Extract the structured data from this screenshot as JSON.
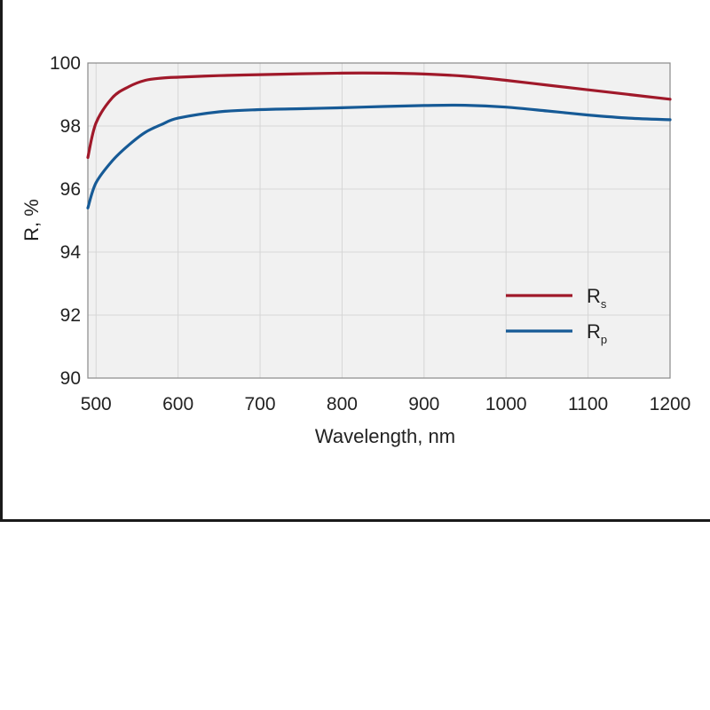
{
  "chart_data": {
    "type": "line",
    "xlabel": "Wavelength, nm",
    "ylabel": "R, %",
    "xlim": [
      490,
      1200
    ],
    "ylim": [
      90,
      100
    ],
    "xticks": [
      500,
      600,
      700,
      800,
      900,
      1000,
      1100,
      1200
    ],
    "yticks": [
      90,
      92,
      94,
      96,
      98,
      100
    ],
    "grid": true,
    "legend": "bottom-right",
    "series": [
      {
        "name": "Rs",
        "name_main": "R",
        "name_sub": "s",
        "color": "#a0192a",
        "x": [
          490,
          500,
          520,
          540,
          560,
          580,
          600,
          650,
          700,
          750,
          800,
          850,
          900,
          950,
          1000,
          1050,
          1100,
          1150,
          1200
        ],
        "y": [
          97.0,
          98.1,
          98.9,
          99.25,
          99.45,
          99.52,
          99.55,
          99.6,
          99.63,
          99.66,
          99.68,
          99.68,
          99.65,
          99.58,
          99.45,
          99.3,
          99.15,
          99.0,
          98.85
        ]
      },
      {
        "name": "Rp",
        "name_main": "R",
        "name_sub": "p",
        "color": "#165a96",
        "x": [
          490,
          500,
          520,
          540,
          560,
          580,
          600,
          650,
          700,
          750,
          800,
          850,
          900,
          950,
          1000,
          1050,
          1100,
          1150,
          1200
        ],
        "y": [
          95.4,
          96.2,
          96.9,
          97.4,
          97.8,
          98.05,
          98.25,
          98.45,
          98.52,
          98.55,
          98.58,
          98.62,
          98.65,
          98.66,
          98.6,
          98.48,
          98.35,
          98.25,
          98.2
        ]
      }
    ]
  }
}
